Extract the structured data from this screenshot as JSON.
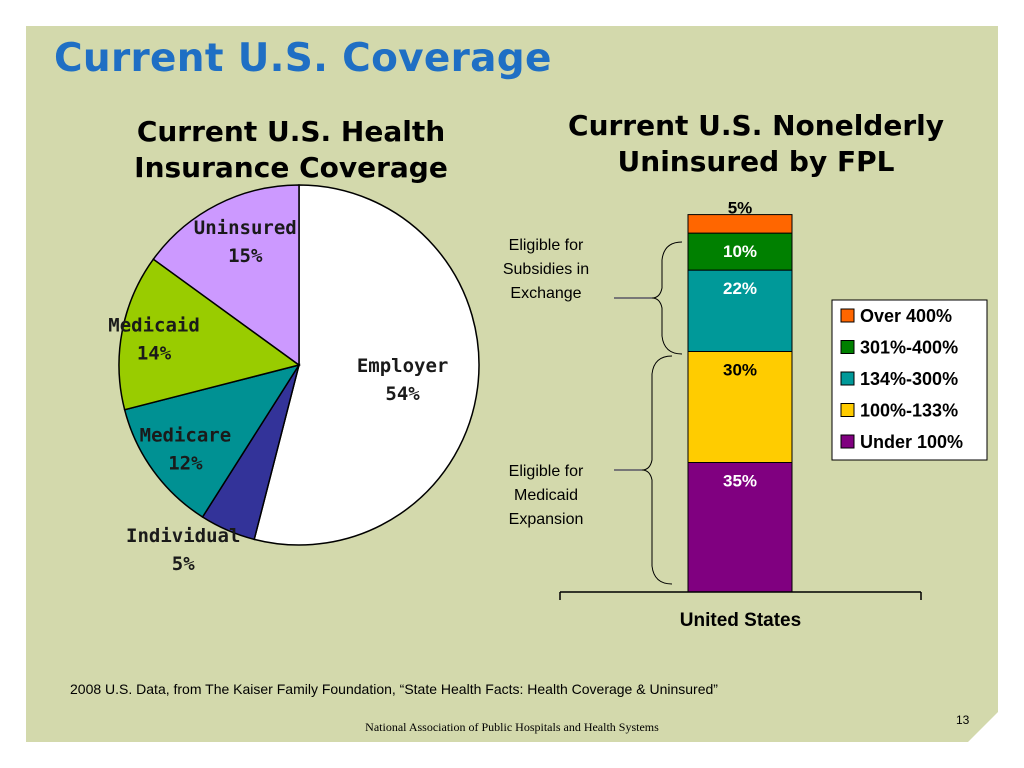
{
  "slide": {
    "title": "Current U.S. Coverage",
    "source": "2008 U.S. Data, from The Kaiser Family Foundation, “State Health Facts: Health Coverage & Uninsured”",
    "footer": "National Association of Public Hospitals and Health Systems",
    "page_number": "13",
    "background_color": "#d3d9ac",
    "title_color": "#1f6fc4"
  },
  "pie_title": [
    "Current U.S. Health",
    "Insurance Coverage"
  ],
  "bar_title": [
    "Current U.S. Nonelderly",
    "Uninsured by FPL"
  ],
  "annotations": {
    "subsidies": [
      "Eligible for",
      "Subsidies in",
      "Exchange"
    ],
    "medicaid": [
      "Eligible for",
      "Medicaid",
      "Expansion"
    ]
  },
  "chart_data": [
    {
      "type": "pie",
      "title": "Current U.S. Health Insurance Coverage",
      "slices": [
        {
          "name": "Employer",
          "value": 54,
          "label": "54%",
          "color": "#ffffff"
        },
        {
          "name": "Individual",
          "value": 5,
          "label": "5%",
          "color": "#333399"
        },
        {
          "name": "Medicare",
          "value": 12,
          "label": "12%",
          "color": "#009193"
        },
        {
          "name": "Medicaid",
          "value": 14,
          "label": "14%",
          "color": "#99cc00"
        },
        {
          "name": "Uninsured",
          "value": 15,
          "label": "15%",
          "color": "#cc99ff"
        }
      ]
    },
    {
      "type": "bar",
      "stacked": true,
      "title": "Current U.S. Nonelderly Uninsured by FPL",
      "categories": [
        "United States"
      ],
      "ylim": [
        0,
        100
      ],
      "series": [
        {
          "name": "Under 100%",
          "values": [
            35
          ],
          "label": "35%",
          "color": "#800080",
          "label_color": "#ffffff"
        },
        {
          "name": "100%-133%",
          "values": [
            30
          ],
          "label": "30%",
          "color": "#ffcc00",
          "label_color": "#000000"
        },
        {
          "name": "134%-300%",
          "values": [
            22
          ],
          "label": "22%",
          "color": "#009999",
          "label_color": "#ffffff"
        },
        {
          "name": "301%-400%",
          "values": [
            10
          ],
          "label": "10%",
          "color": "#008000",
          "label_color": "#ffffff"
        },
        {
          "name": "Over 400%",
          "values": [
            5
          ],
          "label": "5%",
          "color": "#ff6600",
          "label_color": "#000000"
        }
      ],
      "legend": {
        "position": "right",
        "order": [
          "Over 400%",
          "301%-400%",
          "134%-300%",
          "100%-133%",
          "Under 100%"
        ]
      }
    }
  ]
}
